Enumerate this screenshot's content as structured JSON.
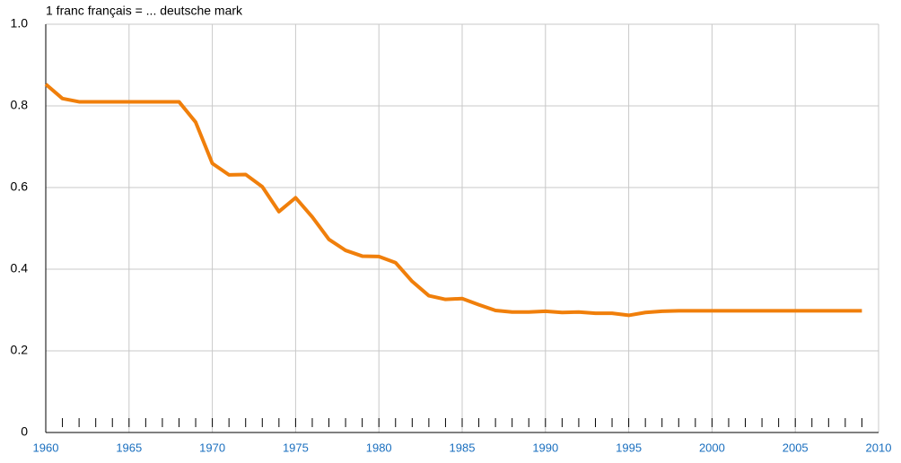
{
  "chart_data": {
    "type": "line",
    "title": "1 franc français = ... deutsche mark",
    "x": [
      1960,
      1961,
      1962,
      1963,
      1964,
      1965,
      1966,
      1967,
      1968,
      1969,
      1970,
      1971,
      1972,
      1973,
      1974,
      1975,
      1976,
      1977,
      1978,
      1979,
      1980,
      1981,
      1982,
      1983,
      1984,
      1985,
      1986,
      1987,
      1988,
      1989,
      1990,
      1991,
      1992,
      1993,
      1994,
      1995,
      1996,
      1997,
      1998,
      1999,
      2000,
      2001,
      2002,
      2003,
      2004,
      2005,
      2006,
      2007,
      2008,
      2009
    ],
    "series": [
      {
        "color": "#f07f0b",
        "values": [
          0.853,
          0.818,
          0.81,
          0.81,
          0.81,
          0.81,
          0.81,
          0.81,
          0.81,
          0.76,
          0.659,
          0.631,
          0.632,
          0.602,
          0.541,
          0.575,
          0.528,
          0.473,
          0.446,
          0.432,
          0.431,
          0.416,
          0.37,
          0.335,
          0.326,
          0.328,
          0.313,
          0.299,
          0.295,
          0.295,
          0.297,
          0.294,
          0.295,
          0.292,
          0.292,
          0.287,
          0.294,
          0.297,
          0.298,
          0.298,
          0.298,
          0.298,
          0.298,
          0.298,
          0.298,
          0.298,
          0.298,
          0.298,
          0.298,
          0.298
        ]
      }
    ],
    "xlim": [
      1960,
      2010
    ],
    "xticks": [
      1960,
      1965,
      1970,
      1975,
      1980,
      1985,
      1990,
      1995,
      2000,
      2005,
      2010
    ],
    "ylim": [
      0,
      1
    ],
    "yticks": [
      0,
      0.2,
      0.4,
      0.6,
      0.8,
      {
        "value": 1,
        "label": "1.0"
      }
    ],
    "grid": true
  }
}
